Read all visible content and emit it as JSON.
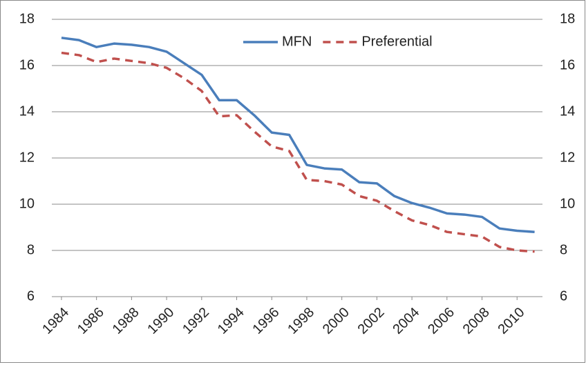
{
  "chart_data": {
    "type": "line",
    "x": [
      1984,
      1985,
      1986,
      1987,
      1988,
      1989,
      1990,
      1991,
      1992,
      1993,
      1994,
      1995,
      1996,
      1997,
      1998,
      1999,
      2000,
      2001,
      2002,
      2003,
      2004,
      2005,
      2006,
      2007,
      2008,
      2009,
      2010,
      2011
    ],
    "xlim": [
      1983.45,
      2011.45
    ],
    "xticks": [
      1984,
      1986,
      1988,
      1990,
      1992,
      1994,
      1996,
      1998,
      2000,
      2002,
      2004,
      2006,
      2008,
      2010
    ],
    "ylim": [
      6,
      18
    ],
    "yticks": [
      6,
      8,
      10,
      12,
      14,
      16,
      18
    ],
    "y2lim": [
      6,
      18
    ],
    "y2ticks": [
      6,
      8,
      10,
      12,
      14,
      16,
      18
    ],
    "grid": true,
    "legend": "top",
    "series": [
      {
        "name": "MFN",
        "color": "#4a7ebb",
        "line_style": "solid",
        "values": [
          17.2,
          17.1,
          16.8,
          16.95,
          16.9,
          16.8,
          16.6,
          16.1,
          15.6,
          14.5,
          14.5,
          13.85,
          13.1,
          13.0,
          11.7,
          11.55,
          11.5,
          10.95,
          10.9,
          10.35,
          10.05,
          9.85,
          9.6,
          9.55,
          9.45,
          8.95,
          8.85,
          8.8
        ]
      },
      {
        "name": "Preferential",
        "color": "#c0504d",
        "line_style": "dashed",
        "values": [
          16.55,
          16.45,
          16.15,
          16.3,
          16.2,
          16.1,
          15.9,
          15.45,
          14.9,
          13.8,
          13.85,
          13.15,
          12.5,
          12.3,
          11.05,
          11.0,
          10.85,
          10.35,
          10.15,
          9.7,
          9.3,
          9.1,
          8.8,
          8.7,
          8.6,
          8.15,
          8.0,
          7.95
        ]
      }
    ]
  }
}
